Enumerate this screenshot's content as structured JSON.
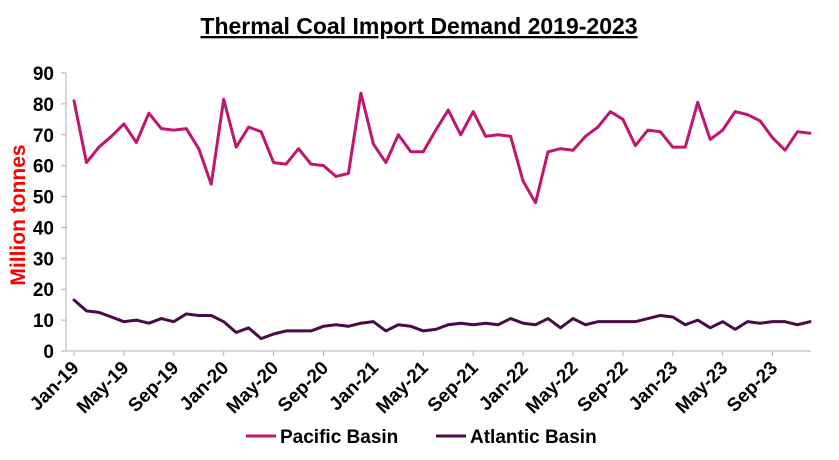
{
  "chart_data": {
    "type": "line",
    "title": "Thermal Coal Import Demand 2019-2023",
    "xlabel": "",
    "ylabel": "Million tonnes",
    "ylim": [
      0,
      90
    ],
    "yticks": [
      0,
      10,
      20,
      30,
      40,
      50,
      60,
      70,
      80,
      90
    ],
    "grid": false,
    "legend_position": "bottom",
    "x_tick_labels": [
      "Jan-19",
      "May-19",
      "Sep-19",
      "Jan-20",
      "May-20",
      "Sep-20",
      "Jan-21",
      "May-21",
      "Sep-21",
      "Jan-22",
      "May-22",
      "Sep-22",
      "Jan-23",
      "May-23",
      "Sep-23"
    ],
    "x_tick_every": 4,
    "categories": [
      "Jan-19",
      "Feb-19",
      "Mar-19",
      "Apr-19",
      "May-19",
      "Jun-19",
      "Jul-19",
      "Aug-19",
      "Sep-19",
      "Oct-19",
      "Nov-19",
      "Dec-19",
      "Jan-20",
      "Feb-20",
      "Mar-20",
      "Apr-20",
      "May-20",
      "Jun-20",
      "Jul-20",
      "Aug-20",
      "Sep-20",
      "Oct-20",
      "Nov-20",
      "Dec-20",
      "Jan-21",
      "Feb-21",
      "Mar-21",
      "Apr-21",
      "May-21",
      "Jun-21",
      "Jul-21",
      "Aug-21",
      "Sep-21",
      "Oct-21",
      "Nov-21",
      "Dec-21",
      "Jan-22",
      "Feb-22",
      "Mar-22",
      "Apr-22",
      "May-22",
      "Jun-22",
      "Jul-22",
      "Aug-22",
      "Sep-22",
      "Oct-22",
      "Nov-22",
      "Dec-22",
      "Jan-23",
      "Feb-23",
      "Mar-23",
      "Apr-23",
      "May-23",
      "Jun-23",
      "Jul-23",
      "Aug-23",
      "Sep-23",
      "Oct-23",
      "Nov-23",
      "Dec-23"
    ],
    "series": [
      {
        "name": "Pacific Basin",
        "color": "#c0166e",
        "values": [
          81,
          61,
          66,
          69.5,
          73.5,
          67.5,
          77,
          72,
          71.5,
          72,
          65.5,
          54,
          81.5,
          66,
          72.5,
          71,
          61,
          60.5,
          65.5,
          60.5,
          60,
          56.5,
          57.5,
          83.5,
          67,
          61,
          70,
          64.5,
          64.5,
          71.5,
          78,
          70,
          77.5,
          69.5,
          70,
          69.5,
          55,
          48,
          64.5,
          65.5,
          65,
          69.5,
          72.5,
          77.5,
          75,
          66.5,
          71.5,
          71,
          66,
          66,
          80.5,
          68.5,
          71.5,
          77.5,
          76.5,
          74.5,
          69,
          65,
          71,
          70.5
        ]
      },
      {
        "name": "Atlantic Basin",
        "color": "#4a0a48",
        "values": [
          16.5,
          13,
          12.5,
          11,
          9.5,
          10,
          9,
          10.5,
          9.5,
          12,
          11.5,
          11.5,
          9.5,
          6,
          7.5,
          4,
          5.5,
          6.5,
          6.5,
          6.5,
          8,
          8.5,
          8,
          9,
          9.5,
          6.5,
          8.5,
          8,
          6.5,
          7,
          8.5,
          9,
          8.5,
          9,
          8.5,
          10.5,
          9,
          8.5,
          10.5,
          7.5,
          10.5,
          8.5,
          9.5,
          9.5,
          9.5,
          9.5,
          10.5,
          11.5,
          11,
          8.5,
          10,
          7.5,
          9.5,
          7,
          9.5,
          9,
          9.5,
          9.5,
          8.5,
          9.5
        ]
      }
    ]
  }
}
